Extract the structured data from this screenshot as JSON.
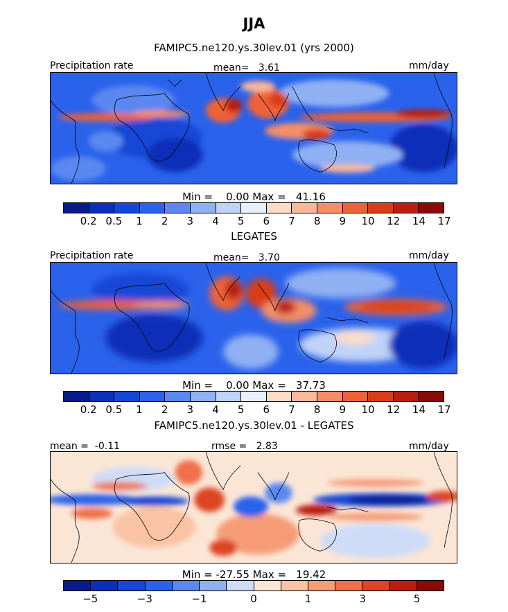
{
  "title": "JJA",
  "colors": {
    "precip": [
      "#081a8c",
      "#0a2fb8",
      "#1447d6",
      "#2a62ec",
      "#5a88f0",
      "#8fb0f3",
      "#bfd2f7",
      "#e7f0fb",
      "#fcdcc7",
      "#f9b89a",
      "#f58e68",
      "#ee6238",
      "#da3c19",
      "#b91e0d",
      "#8a0a07"
    ],
    "diff": [
      "#081a8c",
      "#0a2fb8",
      "#1447d6",
      "#2a62ec",
      "#5a88f0",
      "#8fb0f3",
      "#cfdcf7",
      "#fbe6d6",
      "#f9c3a4",
      "#f59c77",
      "#ef7049",
      "#dd4421",
      "#b91e0d",
      "#8a0a07"
    ]
  },
  "panels": [
    {
      "header": "FAMIPC5.ne120.ys.30lev.01 (yrs 2000)",
      "left_label": "Precipitation rate",
      "stat_text": "mean=   3.61",
      "units": "mm/day",
      "minmax": "Min =    0.00 Max =   41.16",
      "ticks": [
        "0.2",
        "0.5",
        "1",
        "2",
        "3",
        "4",
        "5",
        "6",
        "7",
        "8",
        "9",
        "10",
        "12",
        "14",
        "17"
      ]
    },
    {
      "header": "LEGATES",
      "left_label": "Precipitation rate",
      "stat_text": "mean=   3.70",
      "units": "mm/day",
      "minmax": "Min =    0.00 Max =   37.73",
      "ticks": [
        "0.2",
        "0.5",
        "1",
        "2",
        "3",
        "4",
        "5",
        "6",
        "7",
        "8",
        "9",
        "10",
        "12",
        "14",
        "17"
      ]
    },
    {
      "header": "FAMIPC5.ne120.ys.30lev.01 - LEGATES",
      "left_label": "mean =  -0.11",
      "stat_text": "rmse =   2.83",
      "units": "mm/day",
      "minmax": "Min = -27.55 Max =   19.42",
      "ticks": [
        "−5",
        "−3",
        "−1",
        "0",
        "1",
        "3",
        "5"
      ]
    }
  ]
}
